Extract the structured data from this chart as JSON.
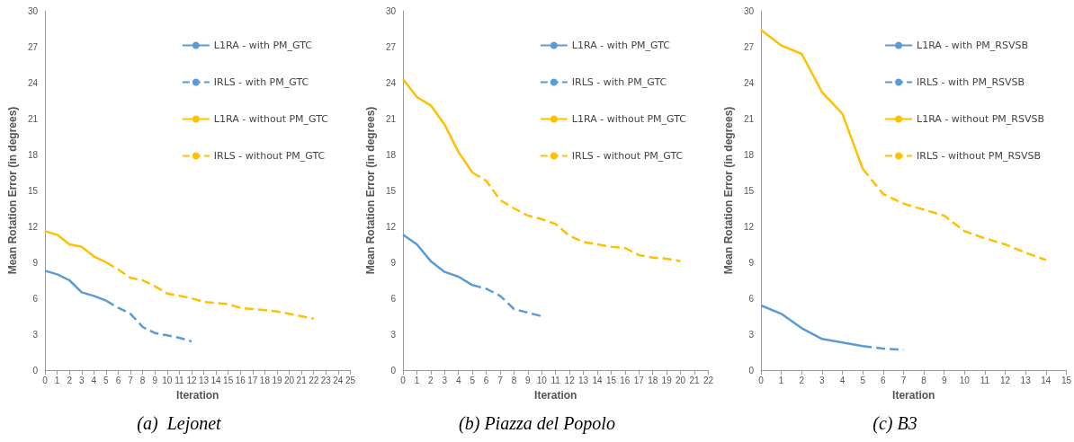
{
  "chart_data": [
    {
      "type": "line",
      "title": "(a)  Lejonet",
      "xlabel": "Iteration",
      "ylabel": "Mean Rotation Error (in degrees)",
      "xlim": [
        0,
        25
      ],
      "xticks": [
        0,
        1,
        2,
        3,
        4,
        5,
        6,
        7,
        8,
        9,
        10,
        11,
        12,
        13,
        14,
        15,
        16,
        17,
        18,
        19,
        20,
        21,
        22,
        23,
        24,
        25
      ],
      "ylim": [
        0,
        30
      ],
      "yticks": [
        0,
        3,
        6,
        9,
        12,
        15,
        18,
        21,
        24,
        27,
        30
      ],
      "grid": false,
      "legend": "top right",
      "marker": "none",
      "series": [
        {
          "name": "L1RA - with PM_GTC",
          "color": "#5b9bd5",
          "line_style": "solid",
          "x": [
            0,
            1,
            2,
            3,
            4,
            5
          ],
          "values": [
            8.3,
            8.0,
            7.5,
            6.5,
            6.2,
            5.8
          ]
        },
        {
          "name": "IRLS - with PM_GTC",
          "color": "#5b9bd5",
          "line_style": "dashed",
          "x": [
            5,
            6,
            7,
            8,
            9,
            10,
            11,
            12
          ],
          "values": [
            5.8,
            5.2,
            4.7,
            3.6,
            3.1,
            2.9,
            2.7,
            2.4
          ]
        },
        {
          "name": "L1RA - without PM_GTC",
          "color": "#ffc000",
          "line_style": "solid",
          "x": [
            0,
            1,
            2,
            3,
            4,
            5
          ],
          "values": [
            11.6,
            11.3,
            10.5,
            10.3,
            9.5,
            9.0
          ]
        },
        {
          "name": "IRLS - without PM_GTC",
          "color": "#ffc000",
          "line_style": "dashed",
          "x": [
            5,
            6,
            7,
            8,
            9,
            10,
            11,
            12,
            13,
            14,
            15,
            16,
            17,
            18,
            19,
            20,
            21,
            22
          ],
          "values": [
            9.0,
            8.4,
            7.7,
            7.5,
            7.0,
            6.4,
            6.2,
            6.0,
            5.7,
            5.6,
            5.5,
            5.2,
            5.1,
            5.0,
            4.9,
            4.7,
            4.5,
            4.3
          ]
        }
      ]
    },
    {
      "type": "line",
      "title": "(b) Piazza del Popolo",
      "xlabel": "Iteration",
      "ylabel": "Mean Rotation Error (in degrees)",
      "xlim": [
        0,
        22
      ],
      "xticks": [
        0,
        1,
        2,
        3,
        4,
        5,
        6,
        7,
        8,
        9,
        10,
        11,
        12,
        13,
        14,
        15,
        16,
        17,
        18,
        19,
        20,
        21,
        22
      ],
      "ylim": [
        0,
        30
      ],
      "yticks": [
        0,
        3,
        6,
        9,
        12,
        15,
        18,
        21,
        24,
        27,
        30
      ],
      "grid": false,
      "legend": "top right",
      "marker": "none",
      "series": [
        {
          "name": "L1RA - with PM_GTC",
          "color": "#5b9bd5",
          "line_style": "solid",
          "x": [
            0,
            1,
            2,
            3,
            4,
            5
          ],
          "values": [
            11.3,
            10.5,
            9.1,
            8.2,
            7.8,
            7.1
          ]
        },
        {
          "name": "IRLS - with PM_GTC",
          "color": "#5b9bd5",
          "line_style": "dashed",
          "x": [
            5,
            6,
            7,
            8,
            9,
            10
          ],
          "values": [
            7.1,
            6.8,
            6.2,
            5.1,
            4.8,
            4.5
          ]
        },
        {
          "name": "L1RA - without PM_GTC",
          "color": "#ffc000",
          "line_style": "solid",
          "x": [
            0,
            1,
            2,
            3,
            4,
            5
          ],
          "values": [
            24.3,
            22.8,
            22.1,
            20.5,
            18.2,
            16.5
          ]
        },
        {
          "name": "IRLS - without PM_GTC",
          "color": "#ffc000",
          "line_style": "dashed",
          "x": [
            5,
            6,
            7,
            8,
            9,
            10,
            11,
            12,
            13,
            14,
            15,
            16,
            17,
            18,
            19,
            20
          ],
          "values": [
            16.5,
            15.8,
            14.2,
            13.5,
            12.9,
            12.6,
            12.2,
            11.2,
            10.7,
            10.5,
            10.3,
            10.2,
            9.6,
            9.4,
            9.3,
            9.1
          ]
        }
      ]
    },
    {
      "type": "line",
      "title": "(c) B3",
      "xlabel": "Iteration",
      "ylabel": "Mean Rotation Error (in degrees)",
      "xlim": [
        0,
        15
      ],
      "xticks": [
        0,
        1,
        2,
        3,
        4,
        5,
        6,
        7,
        8,
        9,
        10,
        11,
        12,
        13,
        14,
        15
      ],
      "ylim": [
        0,
        30
      ],
      "yticks": [
        0,
        3,
        6,
        9,
        12,
        15,
        18,
        21,
        24,
        27,
        30
      ],
      "grid": false,
      "legend": "top right",
      "marker": "none",
      "series": [
        {
          "name": "L1RA - with PM_RSVSB",
          "color": "#5b9bd5",
          "line_style": "solid",
          "x": [
            0,
            1,
            2,
            3,
            4,
            5
          ],
          "values": [
            5.4,
            4.7,
            3.5,
            2.6,
            2.3,
            2.0
          ]
        },
        {
          "name": "IRLS - with PM_RSVSB",
          "color": "#5b9bd5",
          "line_style": "dashed",
          "x": [
            5,
            6,
            7
          ],
          "values": [
            2.0,
            1.8,
            1.7
          ]
        },
        {
          "name": "L1RA - without PM_RSVSB",
          "color": "#ffc000",
          "line_style": "solid",
          "x": [
            0,
            1,
            2,
            3,
            4,
            5
          ],
          "values": [
            28.4,
            27.1,
            26.4,
            23.2,
            21.4,
            16.8
          ]
        },
        {
          "name": "IRLS - without PM_RSVSB",
          "color": "#ffc000",
          "line_style": "dashed",
          "x": [
            5,
            6,
            7,
            8,
            9,
            10,
            11,
            12,
            13,
            14
          ],
          "values": [
            16.8,
            14.7,
            13.9,
            13.4,
            12.9,
            11.6,
            11.0,
            10.5,
            9.8,
            9.2
          ]
        }
      ]
    }
  ]
}
